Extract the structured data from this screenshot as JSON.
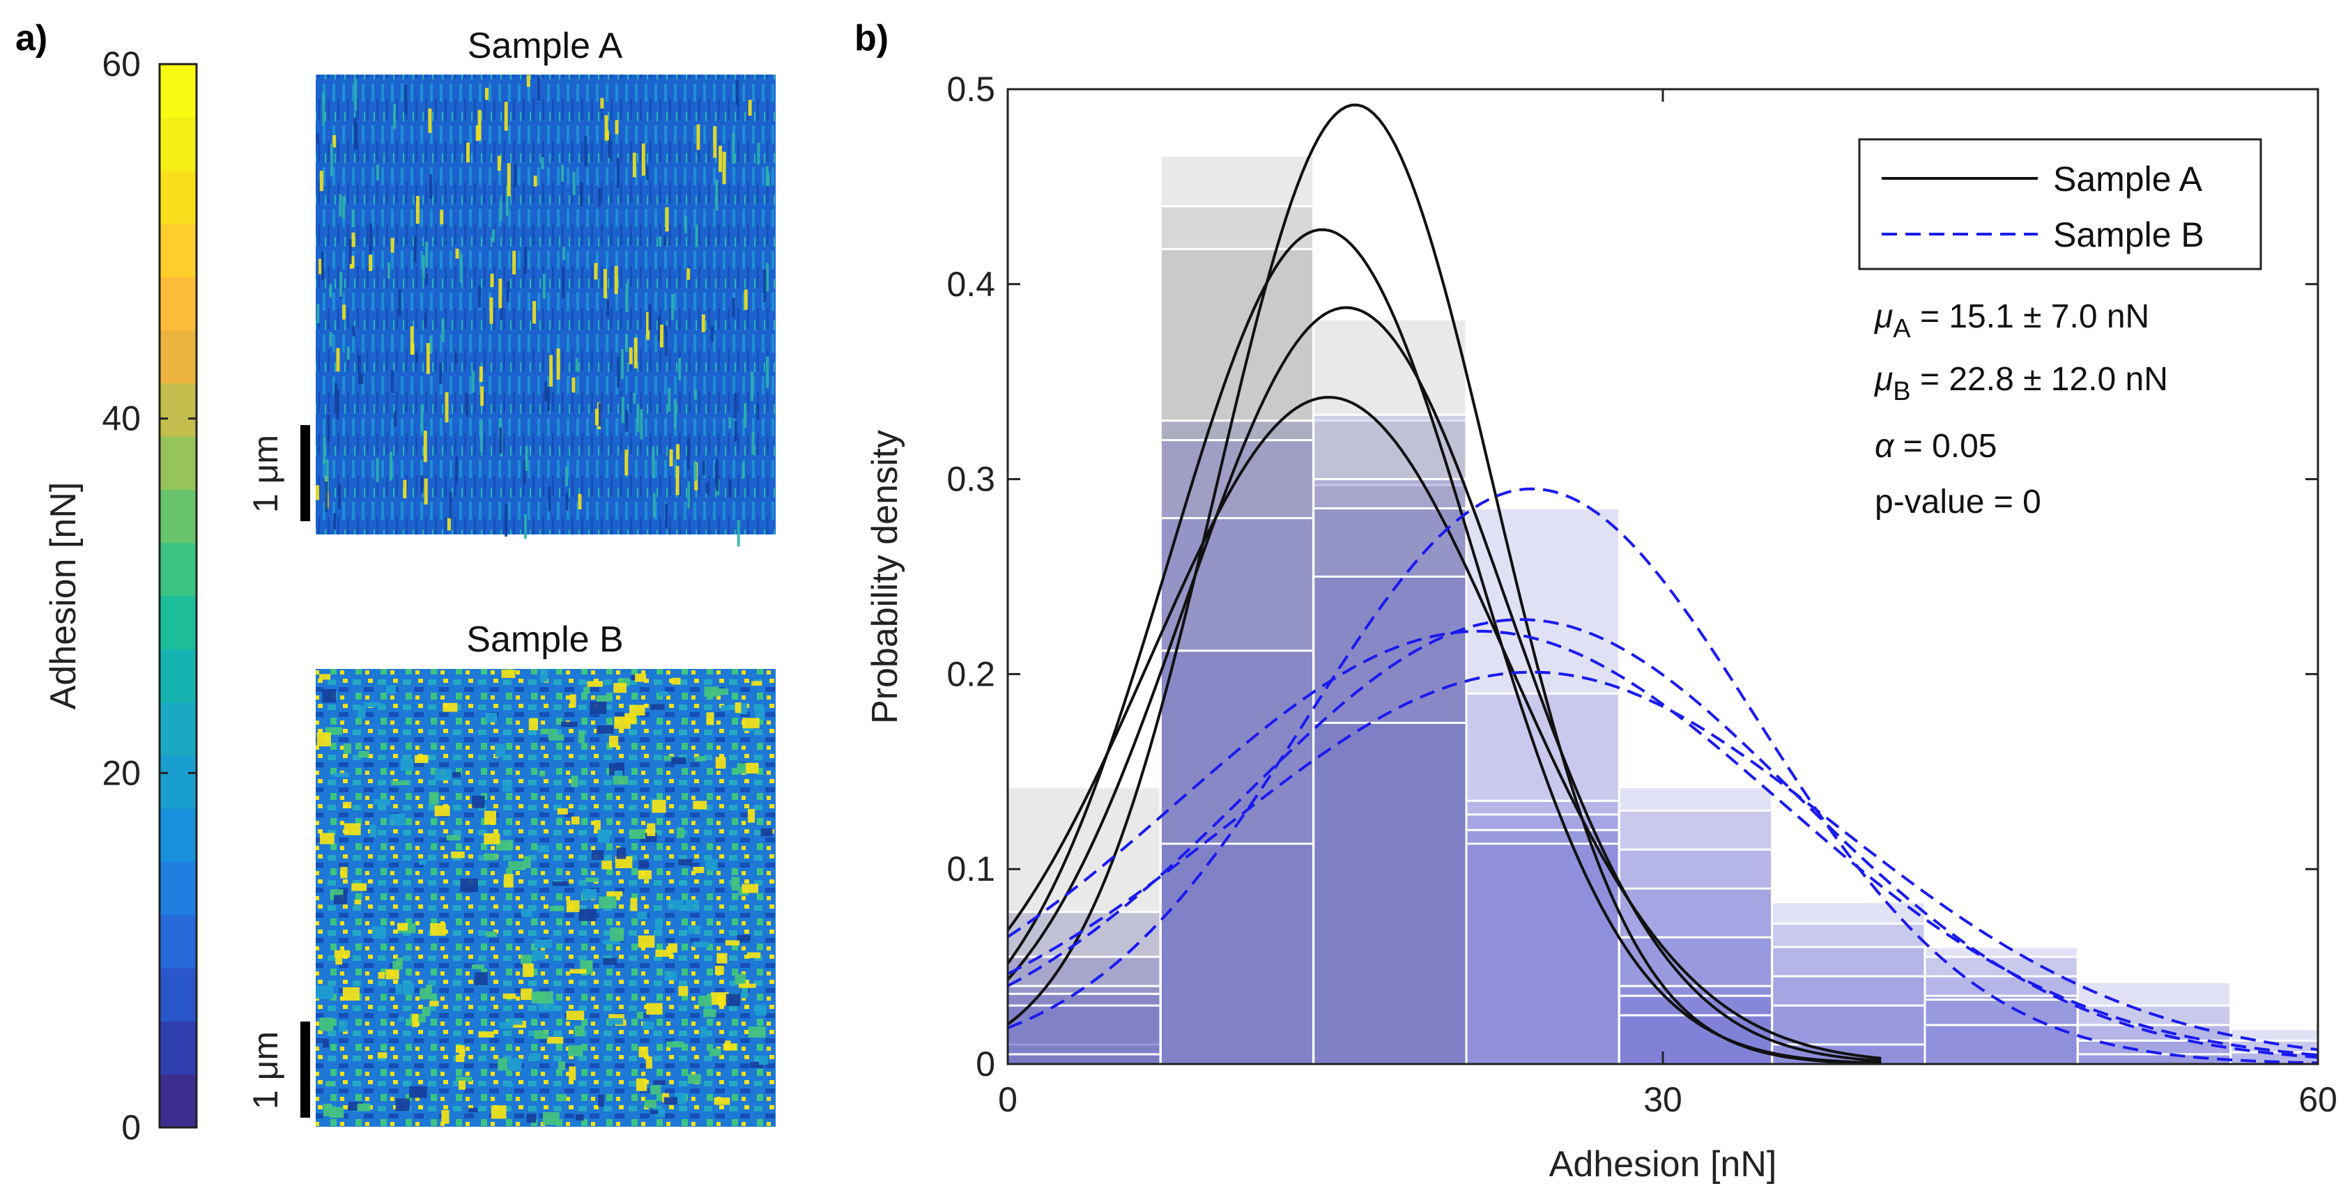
{
  "panel_a": {
    "label": "a)",
    "colorbar": {
      "title": "Adhesion [nN]",
      "ticks": [
        "0",
        "20",
        "40",
        "60"
      ],
      "range": [
        0,
        60
      ],
      "colors": [
        "#3b2e8e",
        "#2f3fb0",
        "#2a56cc",
        "#2669d9",
        "#1f7fe0",
        "#1890dc",
        "#1a9ed0",
        "#1aa8c4",
        "#16b2b0",
        "#1ebd9a",
        "#3cc482",
        "#68c46a",
        "#96c45a",
        "#c2bd4c",
        "#ecb43e",
        "#fdbd3a",
        "#fdce2c",
        "#f8df1c",
        "#f5ee14",
        "#f9fa12"
      ]
    },
    "images": [
      {
        "title": "Sample A",
        "scalebar": "1 μm",
        "style": "striated"
      },
      {
        "title": "Sample B",
        "scalebar": "1 μm",
        "style": "patchy"
      }
    ]
  },
  "chart_data": {
    "panel_label": "b)",
    "type": "histogram_with_fits",
    "xlabel": "Adhesion [nN]",
    "ylabel": "Probability density",
    "xlim": [
      0,
      60
    ],
    "ylim": [
      0,
      0.5
    ],
    "xticks": [
      0,
      30,
      60
    ],
    "yticks": [
      0,
      0.1,
      0.2,
      0.3,
      0.4,
      0.5
    ],
    "bin_edges": [
      0,
      7,
      14,
      21,
      28,
      35,
      42,
      49,
      56,
      60
    ],
    "histograms": {
      "sample_A": {
        "color": "#9a9a9a",
        "bins": [
          [
            0.142,
            0.078,
            0.055,
            0.04,
            0.036,
            0.01
          ],
          [
            0.466,
            0.44,
            0.418,
            0.33,
            0.212
          ],
          [
            0.382,
            0.33,
            0.297,
            0.285,
            0.25,
            0.175
          ],
          [
            0.0,
            0.0,
            0.0,
            0.0,
            0.0
          ],
          [
            0.0,
            0.0,
            0.0,
            0.0,
            0.0
          ]
        ]
      },
      "sample_B": {
        "color": "#6b6bd0",
        "bins": [
          [
            0.078,
            0.055,
            0.04,
            0.036,
            0.03,
            0.005
          ],
          [
            0.33,
            0.32,
            0.28,
            0.212,
            0.113
          ],
          [
            0.333,
            0.3,
            0.285,
            0.25,
            0.175
          ],
          [
            0.285,
            0.19,
            0.135,
            0.128,
            0.12,
            0.113
          ],
          [
            0.142,
            0.13,
            0.11,
            0.09,
            0.065,
            0.04,
            0.035,
            0.025
          ],
          [
            0.083,
            0.072,
            0.06,
            0.045,
            0.03,
            0.01
          ],
          [
            0.06,
            0.055,
            0.045,
            0.035,
            0.033,
            0.02
          ],
          [
            0.042,
            0.03,
            0.02,
            0.012,
            0.005
          ],
          [
            0.018,
            0.012,
            0.006
          ]
        ]
      }
    },
    "fits": {
      "sample_A": [
        {
          "mu": 15.9,
          "sigma": 6.3,
          "peak": 0.492
        },
        {
          "mu": 14.4,
          "sigma": 7.0,
          "peak": 0.428
        },
        {
          "mu": 15.5,
          "sigma": 7.4,
          "peak": 0.388
        },
        {
          "mu": 14.7,
          "sigma": 8.2,
          "peak": 0.342
        }
      ],
      "sample_B": [
        {
          "mu": 24.0,
          "sigma": 10.2,
          "peak": 0.295
        },
        {
          "mu": 23.5,
          "sigma": 12.6,
          "peak": 0.228
        },
        {
          "mu": 21.6,
          "sigma": 13.8,
          "peak": 0.222
        },
        {
          "mu": 24.0,
          "sigma": 14.0,
          "peak": 0.201
        }
      ]
    },
    "legend": [
      {
        "label": "Sample A",
        "style": "solid",
        "color": "#111111"
      },
      {
        "label": "Sample B",
        "style": "dashed",
        "color": "#1a1aee"
      }
    ],
    "stats": {
      "mu_a": {
        "sym": "μ",
        "sub": "A",
        "text": " = 15.1 ± 7.0 nN"
      },
      "mu_b": {
        "sym": "μ",
        "sub": "B",
        "text": " = 22.8 ± 12.0 nN"
      },
      "alpha": {
        "sym": "α",
        "text": " = 0.05"
      },
      "p_value": "p-value = 0"
    }
  }
}
